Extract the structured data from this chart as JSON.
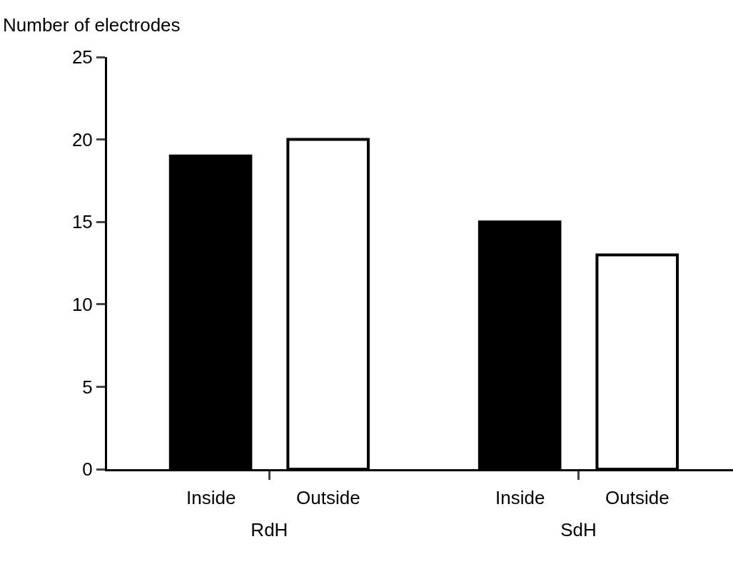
{
  "chart_data": {
    "type": "bar",
    "ylabel": "Number of electrodes",
    "categories": [
      "RdH",
      "SdH"
    ],
    "series": [
      {
        "name": "Inside",
        "color": "#000000",
        "values": [
          19,
          15
        ]
      },
      {
        "name": "Outside",
        "color": "#ffffff",
        "values": [
          20,
          13
        ]
      }
    ],
    "ylim": [
      0,
      25
    ],
    "yticks": [
      0,
      5,
      10,
      15,
      20,
      25
    ],
    "legend": false
  }
}
